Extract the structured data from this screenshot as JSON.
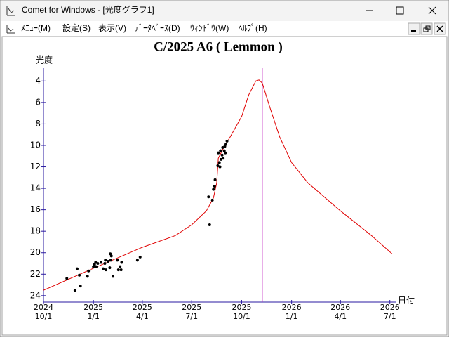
{
  "window": {
    "title": "Comet for Windows - [光度グラフ1]",
    "menu": [
      "ﾒﾆｭｰ(M)",
      "設定(S)",
      "表示(V)",
      "ﾃﾞｰﾀﾍﾞｰｽ(D)",
      "ｳｨﾝﾄﾞｳ(W)",
      "ﾍﾙﾌﾟ(H)"
    ]
  },
  "chart_data": {
    "type": "line",
    "title": "C/2025 A6 ( Lemmon )",
    "ylabel": "光度",
    "xlabel": "日付",
    "xlim": [
      "2024-10-01",
      "2026-07-13"
    ],
    "ylim": [
      24.6,
      2.8
    ],
    "yticks": [
      4,
      6,
      8,
      10,
      12,
      14,
      16,
      18,
      20,
      22,
      24
    ],
    "xticks": [
      {
        "value": "2024-10-01",
        "year": "2024",
        "label": "10/1"
      },
      {
        "value": "2025-01-01",
        "year": "2025",
        "label": "1/1"
      },
      {
        "value": "2025-04-01",
        "year": "2025",
        "label": "4/1"
      },
      {
        "value": "2025-07-01",
        "year": "2025",
        "label": "7/1"
      },
      {
        "value": "2025-10-01",
        "year": "2025",
        "label": "10/1"
      },
      {
        "value": "2026-01-01",
        "year": "2026",
        "label": "1/1"
      },
      {
        "value": "2026-04-01",
        "year": "2026",
        "label": "4/1"
      },
      {
        "value": "2026-07-01",
        "year": "2026",
        "label": "7/1"
      }
    ],
    "axis_color": "#2a1aa0",
    "marker_x": "2025-11-08",
    "marker_color": "#c020c0",
    "series": [
      {
        "style": "line",
        "color": "#e00000",
        "x": [
          "2024-10-01",
          "2025-01-01",
          "2025-04-01",
          "2025-06-01",
          "2025-07-01",
          "2025-07-28",
          "2025-08-10",
          "2025-08-16",
          "2025-08-19",
          "2025-08-29",
          "2025-09-10",
          "2025-10-01",
          "2025-10-14",
          "2025-10-27",
          "2025-11-02",
          "2025-11-08",
          "2025-11-21",
          "2025-12-10",
          "2026-01-01",
          "2026-01-31",
          "2026-04-01",
          "2026-05-28",
          "2026-07-05"
        ],
        "values": [
          23.5,
          21.45,
          19.5,
          18.4,
          17.4,
          16.1,
          14.9,
          13.5,
          11.2,
          10.2,
          9.2,
          7.3,
          5.3,
          4.0,
          3.9,
          4.2,
          6.3,
          9.2,
          11.6,
          13.5,
          16.1,
          18.4,
          20.1
        ]
      },
      {
        "style": "dots",
        "color": "#000000",
        "x": [
          "2024-11-13",
          "2024-11-28",
          "2024-12-02",
          "2024-12-06",
          "2024-12-08",
          "2024-12-21",
          "2024-12-23",
          "2025-01-01",
          "2025-01-03",
          "2025-01-05",
          "2025-01-06",
          "2025-01-09",
          "2025-01-15",
          "2025-01-19",
          "2025-01-22",
          "2025-01-23",
          "2025-01-24",
          "2025-01-28",
          "2025-01-31",
          "2025-02-01",
          "2025-02-02",
          "2025-02-03",
          "2025-02-06",
          "2025-02-14",
          "2025-02-16",
          "2025-02-19",
          "2025-02-22",
          "2025-02-21",
          "2025-03-23",
          "2025-03-28",
          "2025-08-01",
          "2025-08-03",
          "2025-08-08",
          "2025-08-10",
          "2025-08-12",
          "2025-08-13",
          "2025-08-18",
          "2025-08-19",
          "2025-08-21",
          "2025-08-22",
          "2025-08-23",
          "2025-08-24",
          "2025-08-26",
          "2025-08-27",
          "2025-08-28",
          "2025-08-30",
          "2025-08-31",
          "2025-09-01",
          "2025-09-02",
          "2025-09-04"
        ],
        "values": [
          22.4,
          23.5,
          21.5,
          22.1,
          23.1,
          22.2,
          21.7,
          21.3,
          21.1,
          20.9,
          21.3,
          21.0,
          20.9,
          21.5,
          21.0,
          20.7,
          21.6,
          20.8,
          21.4,
          20.1,
          20.7,
          20.3,
          22.2,
          20.7,
          21.6,
          21.3,
          20.9,
          21.6,
          20.7,
          20.4,
          14.8,
          17.4,
          15.1,
          14.1,
          13.8,
          13.2,
          11.9,
          10.7,
          11.6,
          12.0,
          10.5,
          11.3,
          10.9,
          10.2,
          11.2,
          10.5,
          10.1,
          10.7,
          9.9,
          9.6
        ]
      }
    ]
  }
}
